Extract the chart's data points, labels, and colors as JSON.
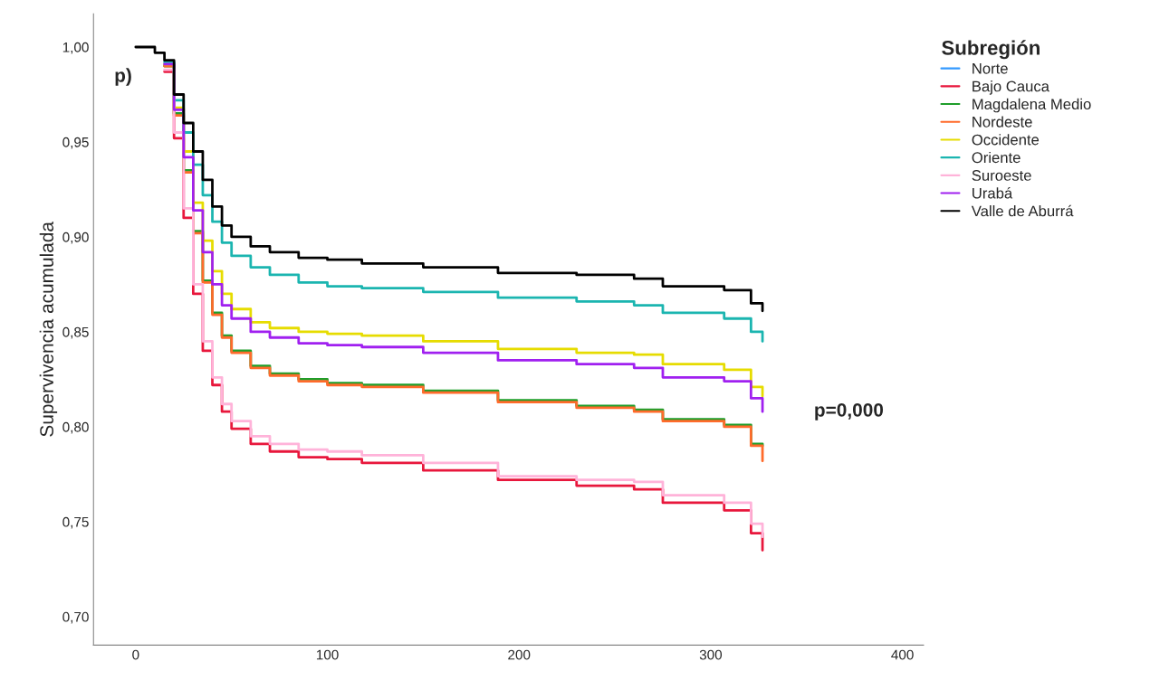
{
  "chart_data": {
    "type": "step",
    "ylabel": "Supervivencia acumulada",
    "legend_title": "Subregión",
    "legend": "right",
    "grid": false,
    "annotations": [
      "p)",
      "p=0,000"
    ],
    "x": [
      0,
      10,
      15,
      20,
      25,
      30,
      35,
      40,
      45,
      50,
      60,
      70,
      85,
      100,
      118,
      150,
      189,
      230,
      260,
      275,
      307,
      321,
      327
    ],
    "xlim": [
      -22,
      411
    ],
    "xticks": [
      0,
      100,
      200,
      300,
      400
    ],
    "ylim": [
      0.685,
      1.0175
    ],
    "yticks": [
      {
        "value": 0.7,
        "label": "0,70"
      },
      {
        "value": 0.75,
        "label": "0,75"
      },
      {
        "value": 0.8,
        "label": "0,80"
      },
      {
        "value": 0.85,
        "label": "0,85"
      },
      {
        "value": 0.9,
        "label": "0,90"
      },
      {
        "value": 0.95,
        "label": "0,95"
      },
      {
        "value": 1.0,
        "label": "1,00"
      }
    ],
    "series": [
      {
        "name": "Norte",
        "color": "#3399ff",
        "values": [
          null,
          null,
          null,
          null,
          null,
          null,
          null,
          null,
          null,
          null,
          null,
          null,
          null,
          null,
          null,
          null,
          null,
          null,
          null,
          null,
          null,
          null,
          null
        ]
      },
      {
        "name": "Bajo Cauca",
        "color": "#e8173c",
        "values": [
          null,
          null,
          0.987,
          0.952,
          0.91,
          0.87,
          0.84,
          0.822,
          0.808,
          0.799,
          0.791,
          0.787,
          0.784,
          0.783,
          0.781,
          0.777,
          0.772,
          0.769,
          0.767,
          0.76,
          0.756,
          0.744,
          0.735
        ]
      },
      {
        "name": "Magdalena Medio",
        "color": "#1f9e2a",
        "values": [
          null,
          null,
          0.99,
          0.965,
          0.935,
          0.903,
          0.877,
          0.86,
          0.848,
          0.84,
          0.832,
          0.828,
          0.825,
          0.823,
          0.822,
          0.819,
          0.814,
          0.811,
          0.809,
          0.804,
          0.801,
          0.791,
          0.79
        ]
      },
      {
        "name": "Nordeste",
        "color": "#ff6b2b",
        "values": [
          null,
          null,
          0.99,
          0.964,
          0.934,
          0.902,
          0.876,
          0.859,
          0.847,
          0.839,
          0.831,
          0.827,
          0.824,
          0.822,
          0.821,
          0.818,
          0.813,
          0.81,
          0.808,
          0.803,
          0.8,
          0.79,
          0.782
        ]
      },
      {
        "name": "Occidente",
        "color": "#e6dc00",
        "values": [
          null,
          null,
          0.991,
          0.968,
          0.945,
          0.918,
          0.898,
          0.882,
          0.87,
          0.862,
          0.855,
          0.852,
          0.85,
          0.849,
          0.848,
          0.845,
          0.841,
          0.839,
          0.838,
          0.833,
          0.83,
          0.821,
          0.816
        ]
      },
      {
        "name": "Oriente",
        "color": "#1bb5b0",
        "values": [
          null,
          null,
          0.992,
          0.972,
          0.955,
          0.938,
          0.922,
          0.908,
          0.897,
          0.89,
          0.884,
          0.88,
          0.876,
          0.874,
          0.873,
          0.871,
          0.868,
          0.866,
          0.864,
          0.86,
          0.857,
          0.85,
          0.845
        ]
      },
      {
        "name": "Suroeste",
        "color": "#ffb3d9",
        "values": [
          null,
          null,
          0.988,
          0.955,
          0.915,
          0.875,
          0.845,
          0.826,
          0.812,
          0.803,
          0.795,
          0.791,
          0.788,
          0.787,
          0.785,
          0.781,
          0.774,
          0.772,
          0.771,
          0.764,
          0.76,
          0.749,
          0.742
        ]
      },
      {
        "name": "Urabá",
        "color": "#a020f0",
        "values": [
          null,
          null,
          0.991,
          0.967,
          0.942,
          0.914,
          0.892,
          0.875,
          0.864,
          0.857,
          0.85,
          0.847,
          0.844,
          0.843,
          0.842,
          0.839,
          0.835,
          0.833,
          0.831,
          0.826,
          0.824,
          0.815,
          0.808
        ]
      },
      {
        "name": "Valle de Aburrá",
        "color": "#000000",
        "values": [
          1.0,
          0.997,
          0.993,
          0.975,
          0.96,
          0.945,
          0.93,
          0.916,
          0.906,
          0.9,
          0.895,
          0.892,
          0.889,
          0.888,
          0.886,
          0.884,
          0.881,
          0.88,
          0.878,
          0.874,
          0.872,
          0.865,
          0.861
        ]
      }
    ]
  }
}
